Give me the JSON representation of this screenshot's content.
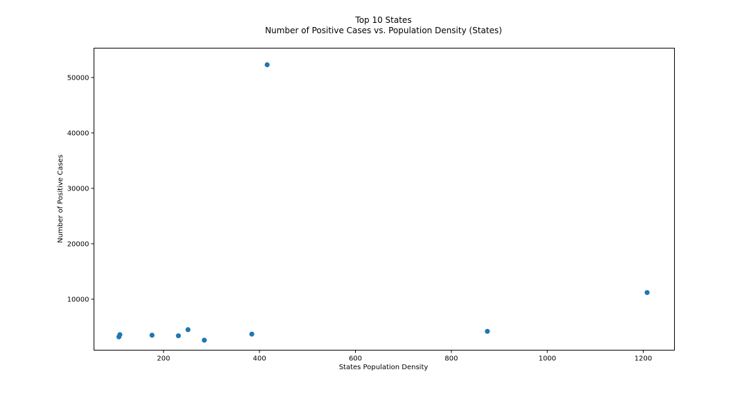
{
  "chart_data": {
    "type": "scatter",
    "title": "Top 10 States",
    "subtitle": "Number of Positive Cases vs. Population Density (States)",
    "xlabel": "States Population Density",
    "ylabel": "Number of Positive Cases",
    "xlim": [
      55,
      1265
    ],
    "ylim": [
      800,
      55300
    ],
    "xticks": [
      200,
      400,
      600,
      800,
      1000,
      1200
    ],
    "yticks": [
      10000,
      20000,
      30000,
      40000,
      50000
    ],
    "grid": false,
    "legend": "none",
    "marker_color": "#1f77b4",
    "series": [
      {
        "points": [
          {
            "x": 107,
            "y": 3200
          },
          {
            "x": 109,
            "y": 3600
          },
          {
            "x": 176,
            "y": 3500
          },
          {
            "x": 231,
            "y": 3400
          },
          {
            "x": 251,
            "y": 4500
          },
          {
            "x": 285,
            "y": 2600
          },
          {
            "x": 384,
            "y": 3700
          },
          {
            "x": 416,
            "y": 52300
          },
          {
            "x": 875,
            "y": 4200
          },
          {
            "x": 1208,
            "y": 11200
          }
        ]
      }
    ]
  }
}
